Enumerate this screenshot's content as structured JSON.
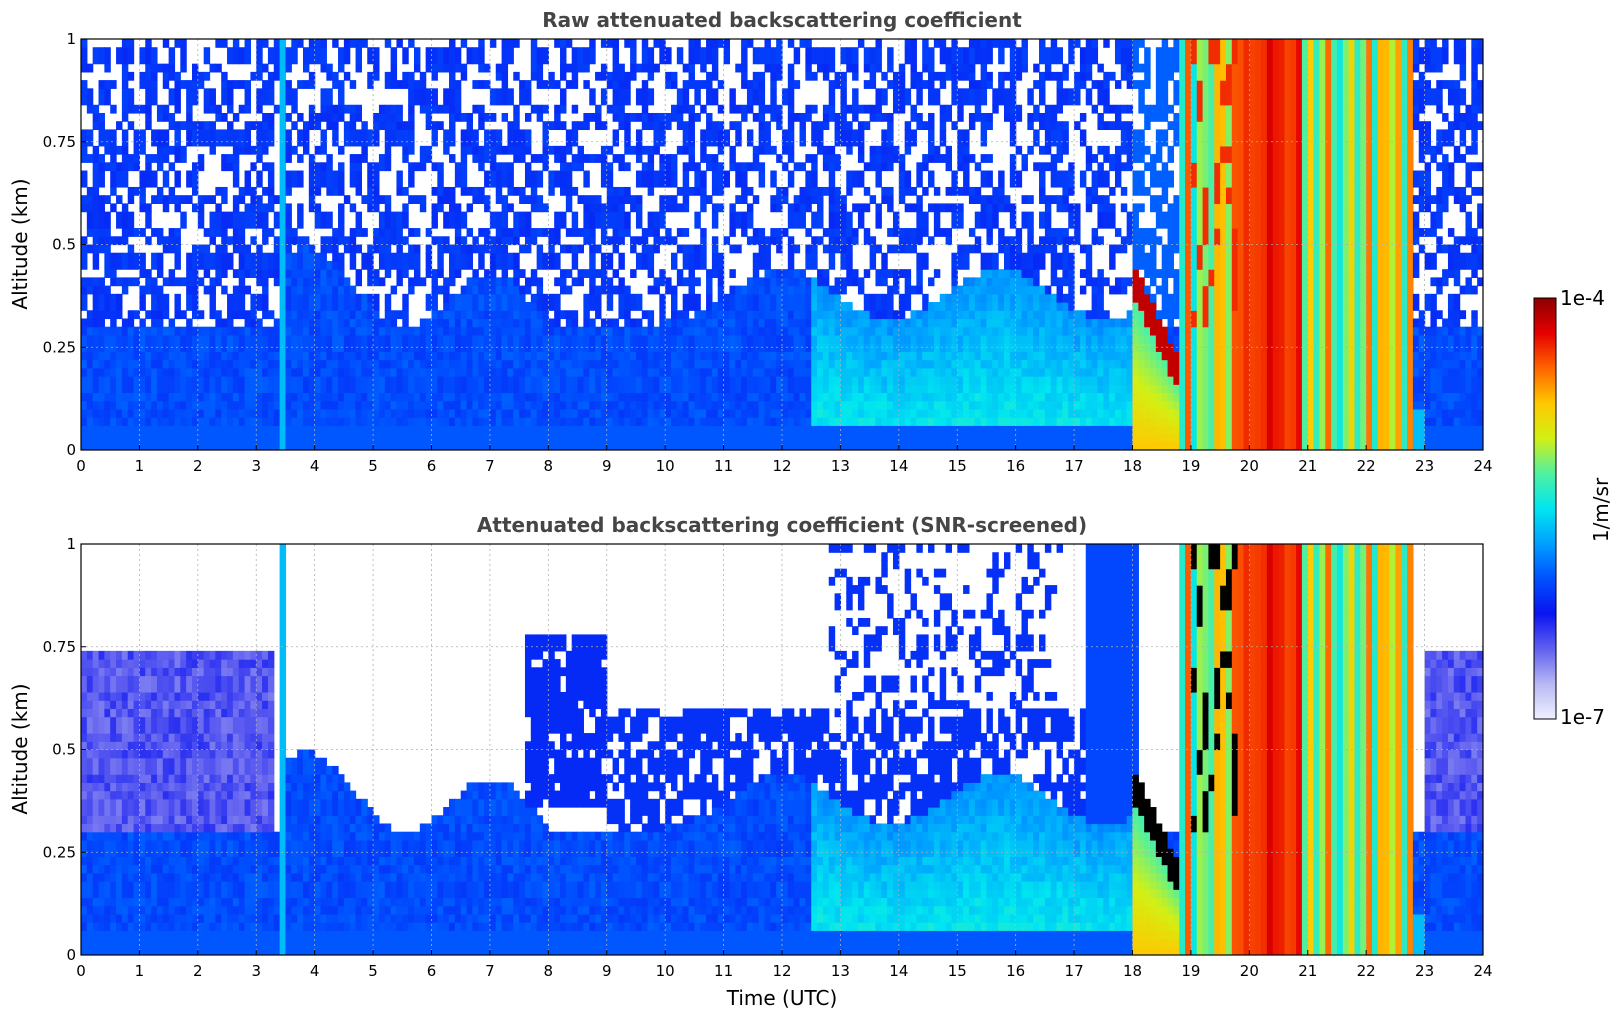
{
  "chart_data": [
    {
      "type": "heatmap",
      "id": "raw",
      "title": "Raw attenuated backscattering coefficient",
      "xlabel": "",
      "ylabel": "Altitude (km)",
      "xlim": [
        0,
        24
      ],
      "ylim": [
        0,
        1
      ],
      "x_ticks": [
        "0",
        "1",
        "2",
        "3",
        "4",
        "5",
        "6",
        "7",
        "8",
        "9",
        "10",
        "11",
        "12",
        "13",
        "14",
        "15",
        "16",
        "17",
        "18",
        "19",
        "20",
        "21",
        "22",
        "23",
        "24"
      ],
      "y_ticks": [
        "0",
        "0.25",
        "0.5",
        "0.75",
        "1"
      ],
      "grid": true,
      "color_scale": "log",
      "regions": [
        {
          "time_range": [
            0,
            3.3
          ],
          "altitude_range": [
            0,
            0.3
          ],
          "level": "low (blue)"
        },
        {
          "time_range": [
            3.4,
            3.5
          ],
          "altitude_range": [
            0,
            1
          ],
          "level": "moderate (cyan)"
        },
        {
          "time_range": [
            3.5,
            8
          ],
          "altitude_range": [
            0,
            0.45
          ],
          "level": "low (blue)"
        },
        {
          "time_range": [
            12.5,
            17.5
          ],
          "altitude_range": [
            0,
            0.35
          ],
          "level": "moderate (light blue)"
        },
        {
          "time_range": [
            18,
            18.8
          ],
          "altitude_range": [
            0.2,
            0.45
          ],
          "level": "high (red, cloud base)"
        },
        {
          "time_range": [
            19.8,
            20.9
          ],
          "altitude_range": [
            0,
            1
          ],
          "level": "high (orange/red, precipitation)"
        },
        {
          "time_range": [
            19,
            22.7
          ],
          "altitude_range": [
            0,
            1
          ],
          "level": "moderate-high (yellow/green)"
        },
        {
          "time_range": [
            0,
            24
          ],
          "altitude_range": [
            0.35,
            1
          ],
          "level": "noise (scattered blue/white)"
        }
      ]
    },
    {
      "type": "heatmap",
      "id": "screened",
      "title": "Attenuated backscattering coefficient (SNR-screened)",
      "xlabel": "Time (UTC)",
      "ylabel": "Altitude (km)",
      "xlim": [
        0,
        24
      ],
      "ylim": [
        0,
        1
      ],
      "x_ticks": [
        "0",
        "1",
        "2",
        "3",
        "4",
        "5",
        "6",
        "7",
        "8",
        "9",
        "10",
        "11",
        "12",
        "13",
        "14",
        "15",
        "16",
        "17",
        "18",
        "19",
        "20",
        "21",
        "22",
        "23",
        "24"
      ],
      "y_ticks": [
        "0",
        "0.25",
        "0.5",
        "0.75",
        "1"
      ],
      "grid": true,
      "color_scale": "log",
      "regions": [
        {
          "time_range": [
            0,
            3.3
          ],
          "altitude_range": [
            0,
            0.75
          ],
          "level": "low (blue, fading to pale)"
        },
        {
          "time_range": [
            7.5,
            9
          ],
          "altitude_range": [
            0.35,
            0.8
          ],
          "level": "low (blue plume)"
        },
        {
          "time_range": [
            9,
            17.5
          ],
          "altitude_range": [
            0,
            0.6
          ],
          "level": "low (blue)"
        },
        {
          "time_range": [
            18,
            18.8
          ],
          "altitude_range": [
            0.2,
            0.45
          ],
          "level": "saturated (black, cloud base)"
        },
        {
          "time_range": [
            19.8,
            20.9
          ],
          "altitude_range": [
            0,
            1
          ],
          "level": "high (orange/red, precipitation)"
        },
        {
          "time_range": [
            23,
            24
          ],
          "altitude_range": [
            0.35,
            0.75
          ],
          "level": "low (pale blue)"
        }
      ]
    }
  ],
  "colorbar": {
    "max_label": "1e-4",
    "min_label": "1e-7",
    "unit_label": "1/m/sr",
    "colormap": [
      "#f0f0ff",
      "#b8b8f4",
      "#6060f0",
      "#0a14f0",
      "#0050ff",
      "#00a0ff",
      "#00e6f0",
      "#50f0a0",
      "#d2f014",
      "#ffc800",
      "#ff6400",
      "#e60000",
      "#8c0000"
    ]
  }
}
